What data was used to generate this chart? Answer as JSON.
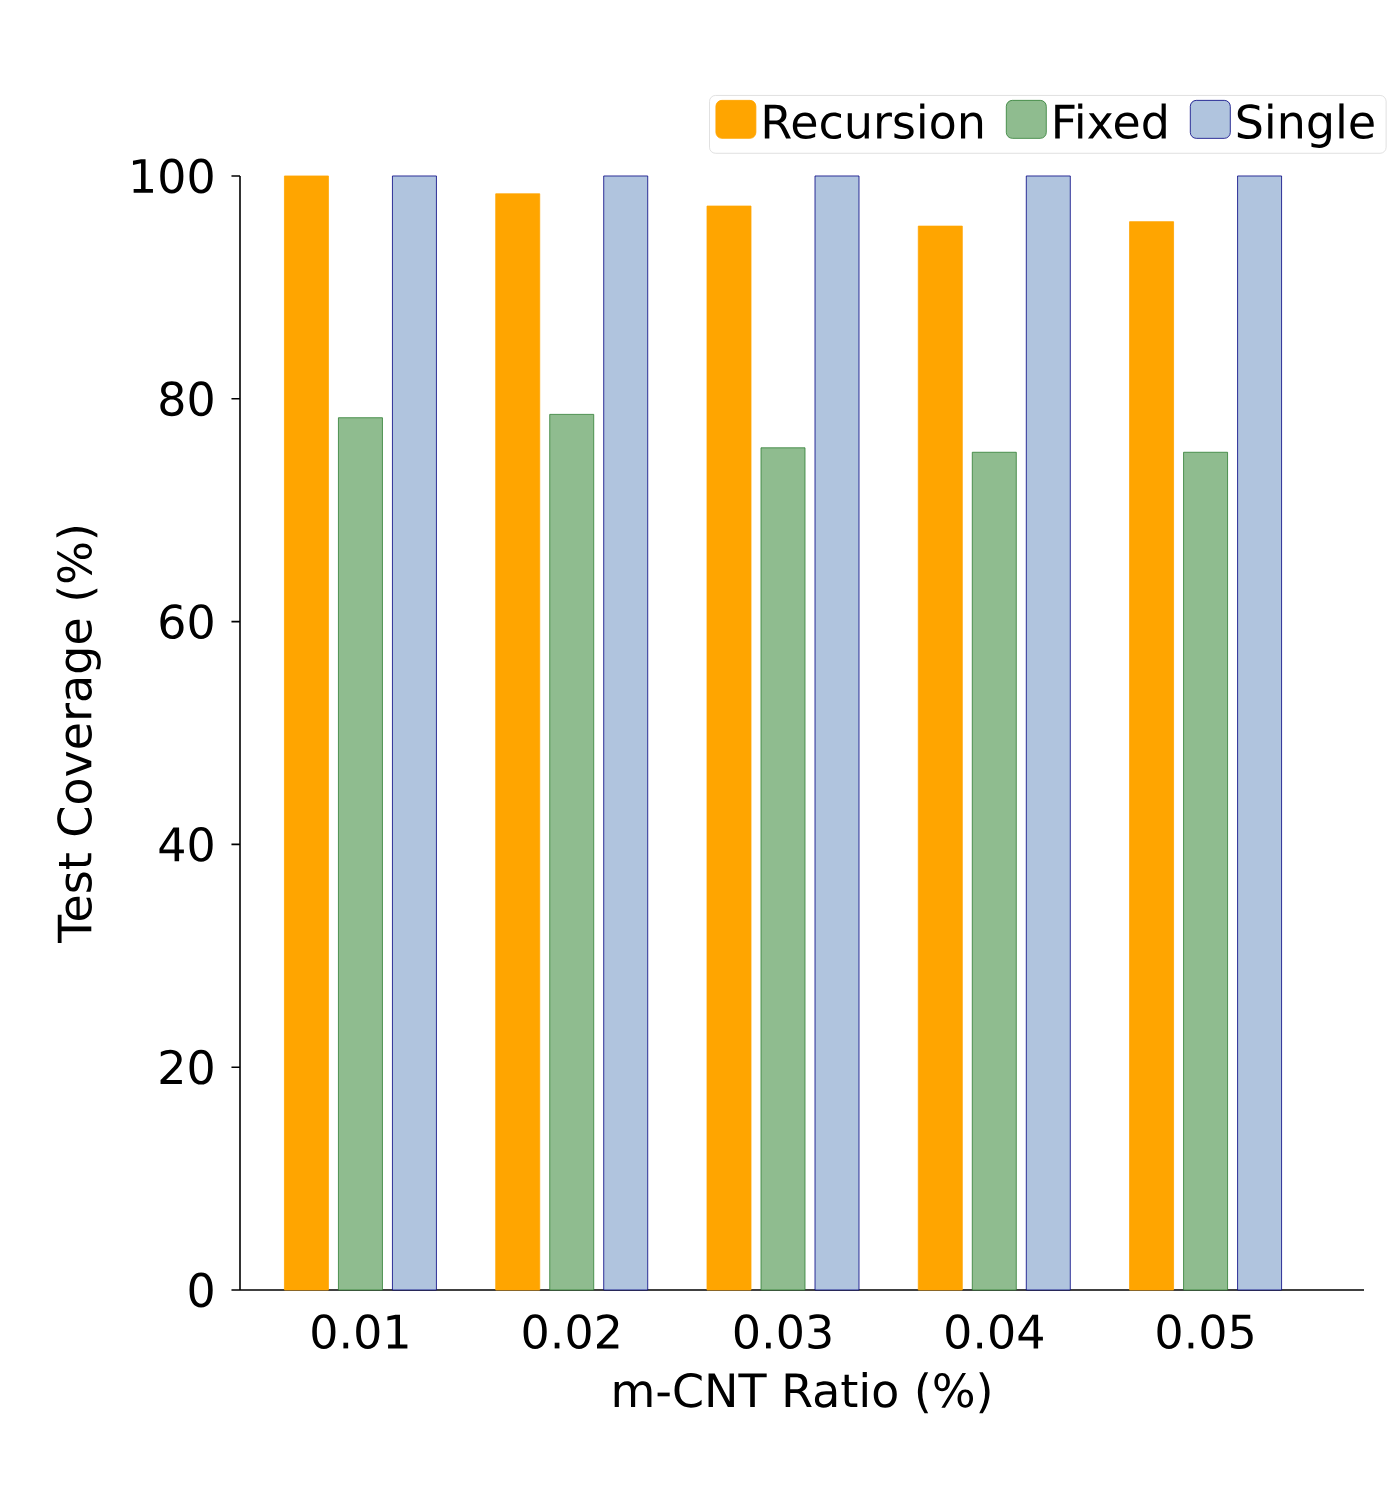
{
  "chart_data": {
    "type": "bar",
    "xlabel": "m-CNT Ratio (%)",
    "ylabel": "Test Coverage (%)",
    "categories": [
      "0.01",
      "0.02",
      "0.03",
      "0.04",
      "0.05"
    ],
    "series": [
      {
        "name": "Recursion",
        "color": "#ffa500",
        "values": [
          100,
          98.4,
          97.3,
          95.5,
          95.9
        ]
      },
      {
        "name": "Fixed",
        "color": "#8fbc8f",
        "values": [
          78.3,
          78.6,
          75.6,
          75.2,
          75.2
        ]
      },
      {
        "name": "Single",
        "color": "#b0c4de",
        "values": [
          100,
          100,
          100,
          100,
          100
        ]
      }
    ],
    "ylim": [
      0,
      100
    ],
    "yticks": [
      0,
      20,
      40,
      60,
      80,
      100
    ],
    "legend": "top right"
  }
}
